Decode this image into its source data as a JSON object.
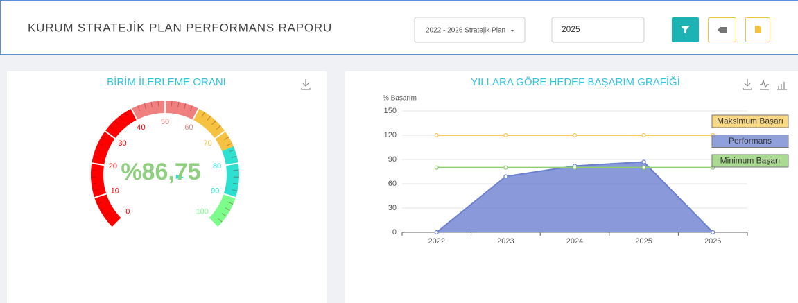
{
  "header": {
    "title": "KURUM STRATEJİK PLAN PERFORMANS RAPORU",
    "plan_select": "2022 - 2026 Stratejik Plan",
    "year_input": "2025"
  },
  "chart_data": [
    {
      "type": "gauge",
      "title": "BİRİM İLERLEME ORANI",
      "values": [
        86.75
      ],
      "value_labels": [
        "%86,75"
      ],
      "color": "#2ee0d0",
      "ylim": [
        0,
        100
      ],
      "yticks": [
        0,
        10,
        20,
        30,
        40,
        50,
        60,
        70,
        80,
        90,
        100
      ],
      "bands": [
        {
          "to": 40,
          "color": "#ff0000"
        },
        {
          "to": 60,
          "color": "#f08080"
        },
        {
          "to": 75,
          "color": "#f5c242"
        },
        {
          "to": 90,
          "color": "#2ee0d0"
        },
        {
          "to": 100,
          "color": "#7cfc8a"
        }
      ]
    },
    {
      "type": "line",
      "title": "YILLARA GÖRE HEDEF BAŞARIM GRAFİĞİ",
      "y_label": "% Başarım",
      "categories": [
        "2022",
        "2023",
        "2024",
        "2025",
        "2026"
      ],
      "ylim": [
        0,
        150
      ],
      "yticks": [
        0,
        30,
        60,
        90,
        120,
        150
      ],
      "grid": true,
      "series": [
        {
          "name": "Maksimum Başarı",
          "color": "#f5c95c",
          "values": [
            120,
            120,
            120,
            120,
            120
          ]
        },
        {
          "name": "Performans",
          "color": "#6b80cf",
          "values": [
            0,
            69,
            82,
            87,
            0
          ],
          "area": true
        },
        {
          "name": "Minimum Başarı",
          "color": "#8fcf6e",
          "values": [
            80,
            80,
            80,
            80,
            80
          ]
        }
      ]
    }
  ]
}
